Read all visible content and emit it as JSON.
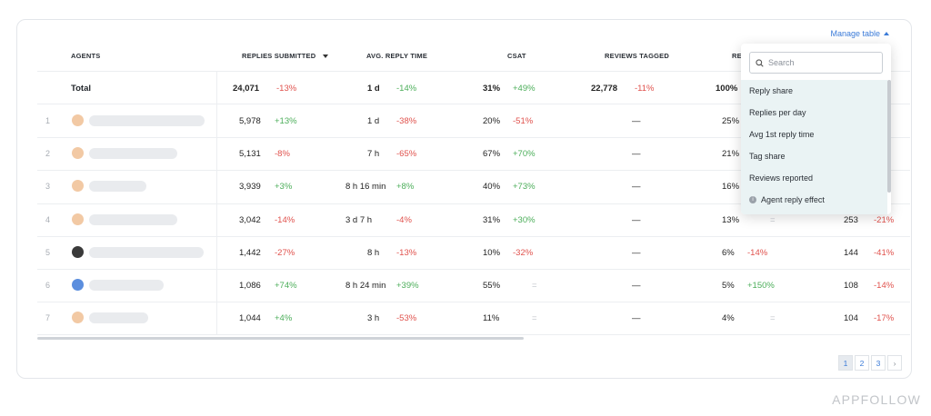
{
  "manage_table_label": "Manage table",
  "columns": {
    "agents": "AGENTS",
    "replies_submitted": "REPLIES SUBMITTED",
    "avg_reply_time": "AVG. REPLY TIME",
    "csat": "CSAT",
    "reviews_tagged": "REVIEWS TAGGED",
    "reply_share_partial": "REI"
  },
  "total": {
    "label": "Total",
    "replies": "24,071",
    "replies_delta": "-13%",
    "time": "1 d",
    "time_delta": "-14%",
    "csat": "31%",
    "csat_delta": "+49%",
    "tagged": "22,778",
    "tagged_delta": "-11%",
    "share": "100%"
  },
  "rows": [
    {
      "idx": "1",
      "replies": "5,978",
      "replies_delta": "+13%",
      "time": "1 d",
      "time_delta": "-38%",
      "csat": "20%",
      "csat_delta": "-51%",
      "tagged": "—",
      "share": "25%",
      "col7_delta": "",
      "col8": "",
      "col8_delta": ""
    },
    {
      "idx": "2",
      "replies": "5,131",
      "replies_delta": "-8%",
      "time": "7 h",
      "time_delta": "-65%",
      "csat": "67%",
      "csat_delta": "+70%",
      "tagged": "—",
      "share": "21%",
      "col7_delta": "",
      "col8": "",
      "col8_delta": ""
    },
    {
      "idx": "3",
      "replies": "3,939",
      "replies_delta": "+3%",
      "time": "8 h 16 min",
      "time_delta": "+8%",
      "csat": "40%",
      "csat_delta": "+73%",
      "tagged": "—",
      "share": "16%",
      "col7_delta": "",
      "col8": "",
      "col8_delta": ""
    },
    {
      "idx": "4",
      "replies": "3,042",
      "replies_delta": "-14%",
      "time": "3 d 7 h",
      "time_delta": "-4%",
      "csat": "31%",
      "csat_delta": "+30%",
      "tagged": "—",
      "share": "13%",
      "col7_delta": "=",
      "col8": "253",
      "col8_delta": "-21%"
    },
    {
      "idx": "5",
      "replies": "1,442",
      "replies_delta": "-27%",
      "time": "8 h",
      "time_delta": "-13%",
      "csat": "10%",
      "csat_delta": "-32%",
      "tagged": "—",
      "share": "6%",
      "col7_delta": "-14%",
      "col8": "144",
      "col8_delta": "-41%"
    },
    {
      "idx": "6",
      "replies": "1,086",
      "replies_delta": "+74%",
      "time": "8 h 24 min",
      "time_delta": "+39%",
      "csat": "55%",
      "csat_delta": "=",
      "tagged": "—",
      "share": "5%",
      "col7_delta": "+150%",
      "col8": "108",
      "col8_delta": "-14%"
    },
    {
      "idx": "7",
      "replies": "1,044",
      "replies_delta": "+4%",
      "time": "3 h",
      "time_delta": "-53%",
      "csat": "11%",
      "csat_delta": "=",
      "tagged": "—",
      "share": "4%",
      "col7_delta": "=",
      "col8": "104",
      "col8_delta": "-17%"
    }
  ],
  "dropdown": {
    "search_placeholder": "Search",
    "items": [
      "Reply share",
      "Replies per day",
      "Avg 1st reply time",
      "Tag share",
      "Reviews reported",
      "Agent reply effect"
    ]
  },
  "pagination": {
    "pages": [
      "1",
      "2",
      "3"
    ],
    "next": "›"
  },
  "brand": "APPFOLLOW",
  "icons": {
    "search": "search-icon",
    "info": "info-icon",
    "caret": "caret-up-icon",
    "sort": "sort-down-icon"
  },
  "colors": {
    "accent": "#3b7bd8",
    "positive": "#4cae5a",
    "negative": "#e0524d",
    "dropdown_bg": "#eaf3f4"
  }
}
